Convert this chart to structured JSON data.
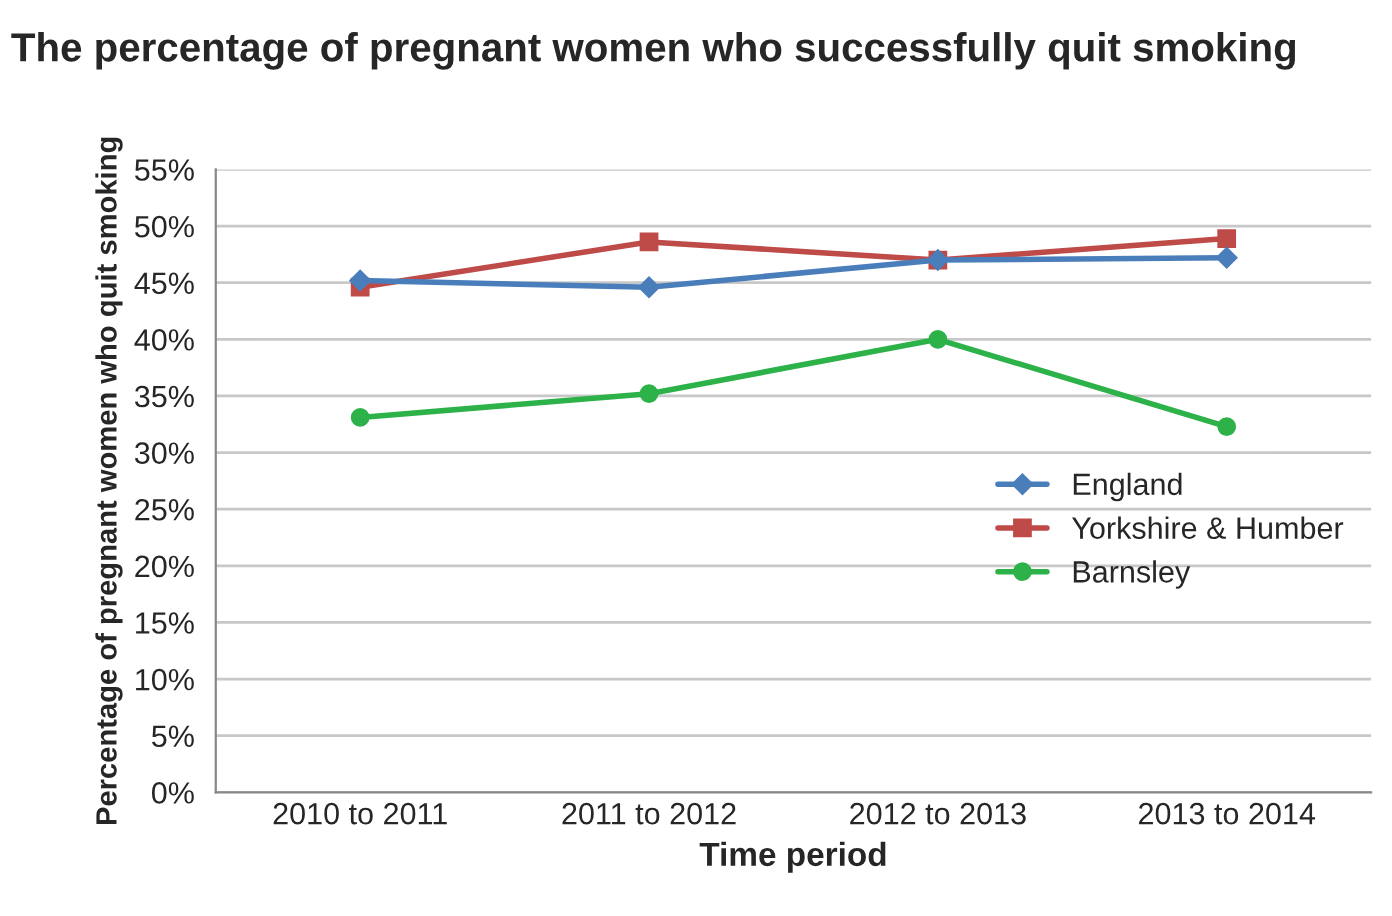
{
  "chart_data": {
    "type": "line",
    "title": "The percentage of pregnant women who successfully quit smoking",
    "xlabel": "Time period",
    "ylabel": "Percentage of pregnant women who quit smoking",
    "categories": [
      "2010 to 2011",
      "2011 to 2012",
      "2012 to 2013",
      "2013 to 2014"
    ],
    "series": [
      {
        "name": "England",
        "color": "#4a7ebb",
        "marker": "diamond",
        "values": [
          45.2,
          44.6,
          47.0,
          47.2
        ]
      },
      {
        "name": "Yorkshire & Humber",
        "color": "#be4b48",
        "marker": "square",
        "values": [
          44.6,
          48.6,
          47.0,
          48.9
        ]
      },
      {
        "name": "Barnsley",
        "color": "#2db24a",
        "marker": "circle",
        "values": [
          33.1,
          35.2,
          40.0,
          32.3
        ]
      }
    ],
    "ylim": [
      0,
      55
    ],
    "yticks": [
      {
        "value": 0,
        "label": "0%"
      },
      {
        "value": 5,
        "label": "5%"
      },
      {
        "value": 10,
        "label": "10%"
      },
      {
        "value": 15,
        "label": "15%"
      },
      {
        "value": 20,
        "label": "20%"
      },
      {
        "value": 25,
        "label": "25%"
      },
      {
        "value": 30,
        "label": "30%"
      },
      {
        "value": 35,
        "label": "35%"
      },
      {
        "value": 40,
        "label": "40%"
      },
      {
        "value": 45,
        "label": "45%"
      },
      {
        "value": 50,
        "label": "50%"
      },
      {
        "value": 55,
        "label": "55%"
      }
    ],
    "grid": "y",
    "legend": "right"
  }
}
